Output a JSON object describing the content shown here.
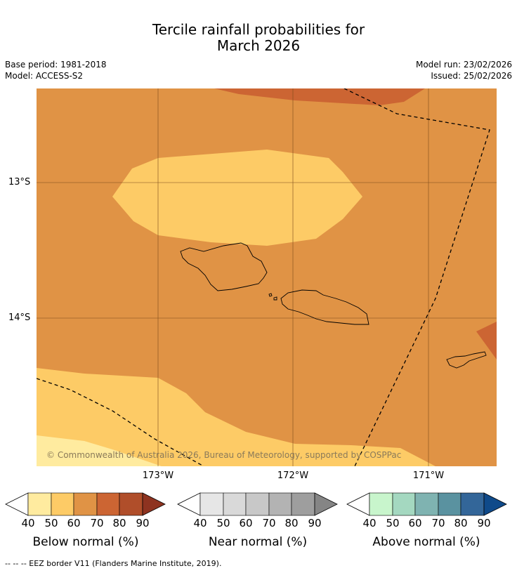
{
  "title_line1": "Tercile rainfall probabilities for",
  "title_line2": "March 2026",
  "base_period": "Base period: 1981-2018",
  "model": "Model: ACCESS-S2",
  "model_run": "Model run: 23/02/2026",
  "issued": "Issued: 25/02/2026",
  "lat_labels": [
    "13°S",
    "14°S"
  ],
  "lon_labels": [
    "173°W",
    "172°W",
    "171°W"
  ],
  "copyright": "© Commonwealth of Australia 2026, Bureau of Meteorology, supported by COSPPac",
  "colorbars": [
    {
      "title": "Below normal (%)",
      "ticks": [
        "40",
        "50",
        "60",
        "70",
        "80",
        "90"
      ],
      "colors": [
        "#ffffff",
        "#ffeb9f",
        "#fdcb66",
        "#e09345",
        "#cc6533",
        "#b04e2a",
        "#8e3320"
      ]
    },
    {
      "title": "Near normal (%)",
      "ticks": [
        "40",
        "50",
        "60",
        "70",
        "80",
        "90"
      ],
      "colors": [
        "#ffffff",
        "#e6e6e6",
        "#d9d9d9",
        "#c8c8c8",
        "#b3b3b3",
        "#9e9e9e",
        "#858585"
      ]
    },
    {
      "title": "Above normal (%)",
      "ticks": [
        "40",
        "50",
        "60",
        "70",
        "80",
        "90"
      ],
      "colors": [
        "#ffffff",
        "#c8f5cc",
        "#a4d8c0",
        "#7fb3b1",
        "#5a92a0",
        "#336699",
        "#0f4a8a"
      ]
    }
  ],
  "footnote": "--  --  -- EEZ border V11 (Flanders Marine Institute, 2019).",
  "map_colors": {
    "base": "#e09345",
    "light": "#fdcb66",
    "lightest": "#ffeb9f",
    "dark": "#cc6533"
  }
}
